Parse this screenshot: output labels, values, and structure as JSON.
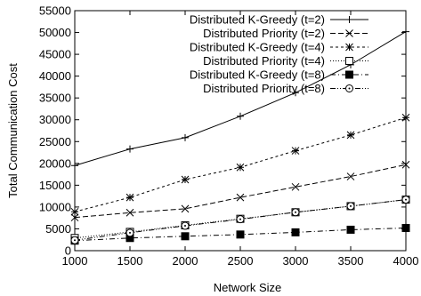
{
  "chart_data": {
    "type": "line",
    "xlabel": "Network Size",
    "ylabel": "Total Communication Cost",
    "x": [
      1000,
      1500,
      2000,
      2500,
      3000,
      3500,
      4000
    ],
    "xlim": [
      1000,
      4000
    ],
    "ylim": [
      0,
      55000
    ],
    "x_ticks": [
      1000,
      1500,
      2000,
      2500,
      3000,
      3500,
      4000
    ],
    "y_ticks": [
      0,
      5000,
      10000,
      15000,
      20000,
      25000,
      30000,
      35000,
      40000,
      45000,
      50000,
      55000
    ],
    "grid": false,
    "legend_position": "top-right",
    "series": [
      {
        "name": "Distributed K-Greedy (t=2)",
        "marker": "plus",
        "dash": "solid",
        "values": [
          19500,
          23300,
          25900,
          30800,
          36200,
          42600,
          50200
        ]
      },
      {
        "name": "Distributed Priority (t=2)",
        "marker": "cross",
        "dash": "dashed",
        "values": [
          7600,
          8700,
          9600,
          12200,
          14600,
          17000,
          19700
        ]
      },
      {
        "name": "Distributed K-Greedy (t=4)",
        "marker": "star",
        "dash": "shortdash",
        "values": [
          8900,
          12200,
          16300,
          19100,
          22900,
          26500,
          30500
        ]
      },
      {
        "name": "Distributed Priority (t=4)",
        "marker": "open-square",
        "dash": "dotted",
        "values": [
          2900,
          4300,
          5800,
          7300,
          8800,
          10200,
          11700
        ]
      },
      {
        "name": "Distributed K-Greedy (t=8)",
        "marker": "filled-square",
        "dash": "dashdot",
        "values": [
          2300,
          2900,
          3300,
          3700,
          4200,
          4800,
          5200
        ]
      },
      {
        "name": "Distributed Priority (t=8)",
        "marker": "open-circle",
        "dash": "dashdotdot",
        "values": [
          2400,
          4100,
          5700,
          7200,
          8800,
          10200,
          11700
        ]
      }
    ]
  }
}
